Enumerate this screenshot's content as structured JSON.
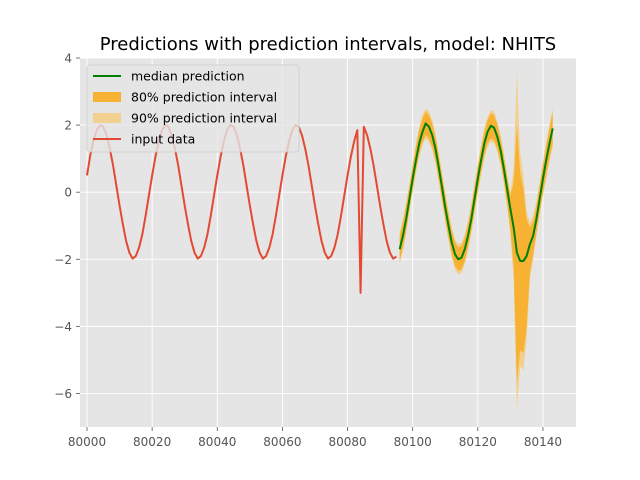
{
  "chart_data": {
    "type": "line",
    "title": "Predictions with prediction intervals, model: NHITS",
    "xlabel": "",
    "ylabel": "",
    "xlim": [
      79997.85,
      80150.15
    ],
    "ylim": [
      -7,
      4
    ],
    "x_ticks": [
      80000,
      80020,
      80040,
      80060,
      80080,
      80100,
      80120,
      80140
    ],
    "y_ticks": [
      4,
      2,
      0,
      -2,
      -4,
      -6
    ],
    "y_tick_labels": [
      "4",
      "2",
      "0",
      "−2",
      "−4",
      "−6"
    ],
    "grid": true,
    "legend_position": "upper-left",
    "legend": [
      {
        "label": "median prediction",
        "kind": "line",
        "color": "#008000"
      },
      {
        "label": "80% prediction interval",
        "kind": "patch",
        "color": "#F7B233"
      },
      {
        "label": "90% prediction interval",
        "kind": "patch",
        "color": "#F2D090"
      },
      {
        "label": "input data",
        "kind": "line",
        "color": "#E24A33"
      }
    ],
    "series": [
      {
        "name": "input data",
        "color": "#E24A33",
        "x": [
          80000,
          80001,
          80002,
          80003,
          80004,
          80005,
          80006,
          80007,
          80008,
          80009,
          80010,
          80011,
          80012,
          80013,
          80014,
          80015,
          80016,
          80017,
          80018,
          80019,
          80020,
          80021,
          80022,
          80023,
          80024,
          80025,
          80026,
          80027,
          80028,
          80029,
          80030,
          80031,
          80032,
          80033,
          80034,
          80035,
          80036,
          80037,
          80038,
          80039,
          80040,
          80041,
          80042,
          80043,
          80044,
          80045,
          80046,
          80047,
          80048,
          80049,
          80050,
          80051,
          80052,
          80053,
          80054,
          80055,
          80056,
          80057,
          80058,
          80059,
          80060,
          80061,
          80062,
          80063,
          80064,
          80065,
          80066,
          80067,
          80068,
          80069,
          80070,
          80071,
          80072,
          80073,
          80074,
          80075,
          80076,
          80077,
          80078,
          80079,
          80080,
          80081,
          80082,
          80083,
          80084,
          80085,
          80086,
          80087,
          80088,
          80089,
          80090,
          80091,
          80092,
          80093,
          80094,
          80095
        ],
        "y": [
          0.5,
          1.1,
          1.55,
          1.85,
          2.0,
          1.95,
          1.7,
          1.3,
          0.8,
          0.2,
          -0.4,
          -0.95,
          -1.45,
          -1.8,
          -1.98,
          -1.9,
          -1.65,
          -1.25,
          -0.7,
          -0.1,
          0.5,
          1.05,
          1.5,
          1.85,
          2.0,
          1.95,
          1.7,
          1.3,
          0.8,
          0.2,
          -0.4,
          -0.95,
          -1.45,
          -1.8,
          -1.98,
          -1.9,
          -1.65,
          -1.25,
          -0.7,
          -0.1,
          0.5,
          1.05,
          1.5,
          1.85,
          2.0,
          1.95,
          1.7,
          1.3,
          0.8,
          0.2,
          -0.4,
          -0.95,
          -1.45,
          -1.8,
          -1.98,
          -1.9,
          -1.65,
          -1.25,
          -0.7,
          -0.1,
          0.5,
          1.05,
          1.5,
          1.85,
          2.0,
          1.95,
          1.7,
          1.3,
          0.8,
          0.2,
          -0.4,
          -0.95,
          -1.45,
          -1.8,
          -1.98,
          -1.9,
          -1.65,
          -1.25,
          -0.7,
          -0.1,
          0.5,
          1.05,
          1.5,
          1.85,
          -3.0,
          1.95,
          1.7,
          1.3,
          0.8,
          0.2,
          -0.4,
          -0.95,
          -1.45,
          -1.8,
          -1.98,
          -1.92
        ]
      },
      {
        "name": "median prediction",
        "color": "#008000",
        "x": [
          80096,
          80097,
          80098,
          80099,
          80100,
          80101,
          80102,
          80103,
          80104,
          80105,
          80106,
          80107,
          80108,
          80109,
          80110,
          80111,
          80112,
          80113,
          80114,
          80115,
          80116,
          80117,
          80118,
          80119,
          80120,
          80121,
          80122,
          80123,
          80124,
          80125,
          80126,
          80127,
          80128,
          80129,
          80130,
          80131,
          80132,
          80133,
          80134,
          80135,
          80136,
          80137,
          80138,
          80139,
          80140,
          80141,
          80142,
          80143
        ],
        "y": [
          -1.7,
          -1.3,
          -0.8,
          -0.2,
          0.4,
          0.95,
          1.45,
          1.8,
          2.05,
          1.95,
          1.7,
          1.3,
          0.75,
          0.15,
          -0.45,
          -1.0,
          -1.5,
          -1.85,
          -2.0,
          -1.95,
          -1.7,
          -1.3,
          -0.8,
          -0.2,
          0.4,
          0.95,
          1.45,
          1.8,
          1.98,
          1.92,
          1.65,
          1.25,
          0.7,
          0.1,
          -0.5,
          -1.05,
          -1.8,
          -2.05,
          -2.05,
          -1.9,
          -1.55,
          -1.3,
          -0.8,
          -0.2,
          0.4,
          0.95,
          1.45,
          1.9
        ]
      }
    ],
    "intervals": [
      {
        "name": "90% prediction interval",
        "color": "#F2D090",
        "x": [
          80096,
          80097,
          80098,
          80099,
          80100,
          80101,
          80102,
          80103,
          80104,
          80105,
          80106,
          80107,
          80108,
          80109,
          80110,
          80111,
          80112,
          80113,
          80114,
          80115,
          80116,
          80117,
          80118,
          80119,
          80120,
          80121,
          80122,
          80123,
          80124,
          80125,
          80126,
          80127,
          80128,
          80129,
          80130,
          80131,
          80132,
          80133,
          80134,
          80135,
          80136,
          80137,
          80138,
          80139,
          80140,
          80141,
          80142,
          80143
        ],
        "lower": [
          -2.15,
          -1.75,
          -1.25,
          -0.6,
          0.0,
          0.55,
          1.05,
          1.4,
          1.6,
          1.5,
          1.25,
          0.85,
          0.3,
          -0.3,
          -0.9,
          -1.45,
          -1.95,
          -2.3,
          -2.45,
          -2.4,
          -2.15,
          -1.75,
          -1.25,
          -0.65,
          -0.05,
          0.5,
          1.0,
          1.35,
          1.5,
          1.45,
          1.2,
          0.8,
          0.25,
          -0.45,
          -1.3,
          -2.6,
          -6.5,
          -5.2,
          -5.3,
          -4.4,
          -2.6,
          -2.0,
          -1.3,
          -0.7,
          -0.1,
          0.4,
          0.9,
          1.35
        ],
        "upper": [
          -1.2,
          -0.8,
          -0.3,
          0.25,
          0.85,
          1.45,
          1.95,
          2.3,
          2.5,
          2.4,
          2.15,
          1.75,
          1.2,
          0.6,
          0.0,
          -0.55,
          -1.05,
          -1.4,
          -1.55,
          -1.5,
          -1.25,
          -0.85,
          -0.35,
          0.25,
          0.85,
          1.4,
          1.9,
          2.25,
          2.45,
          2.4,
          2.1,
          1.7,
          1.15,
          0.55,
          0.0,
          0.7,
          3.6,
          1.2,
          0.5,
          -0.6,
          -0.9,
          -0.7,
          -0.3,
          0.3,
          0.9,
          1.5,
          2.0,
          2.5
        ]
      },
      {
        "name": "80% prediction interval",
        "color": "#F7B233",
        "x": [
          80096,
          80097,
          80098,
          80099,
          80100,
          80101,
          80102,
          80103,
          80104,
          80105,
          80106,
          80107,
          80108,
          80109,
          80110,
          80111,
          80112,
          80113,
          80114,
          80115,
          80116,
          80117,
          80118,
          80119,
          80120,
          80121,
          80122,
          80123,
          80124,
          80125,
          80126,
          80127,
          80128,
          80129,
          80130,
          80131,
          80132,
          80133,
          80134,
          80135,
          80136,
          80137,
          80138,
          80139,
          80140,
          80141,
          80142,
          80143
        ],
        "lower": [
          -2.05,
          -1.65,
          -1.15,
          -0.5,
          0.1,
          0.65,
          1.15,
          1.5,
          1.7,
          1.6,
          1.35,
          0.95,
          0.4,
          -0.2,
          -0.8,
          -1.35,
          -1.85,
          -2.2,
          -2.35,
          -2.3,
          -2.05,
          -1.65,
          -1.15,
          -0.55,
          0.05,
          0.6,
          1.1,
          1.45,
          1.6,
          1.55,
          1.3,
          0.9,
          0.35,
          -0.35,
          -1.1,
          -2.2,
          -5.7,
          -4.7,
          -4.8,
          -4.0,
          -2.4,
          -1.85,
          -1.2,
          -0.6,
          0.0,
          0.5,
          1.0,
          1.45
        ],
        "upper": [
          -1.3,
          -0.9,
          -0.4,
          0.15,
          0.75,
          1.35,
          1.85,
          2.2,
          2.4,
          2.3,
          2.05,
          1.65,
          1.1,
          0.5,
          -0.1,
          -0.65,
          -1.15,
          -1.5,
          -1.65,
          -1.6,
          -1.35,
          -0.95,
          -0.45,
          0.15,
          0.75,
          1.3,
          1.8,
          2.15,
          2.35,
          2.3,
          2.0,
          1.6,
          1.05,
          0.45,
          -0.1,
          0.3,
          2.0,
          0.6,
          0.1,
          -0.8,
          -1.05,
          -0.85,
          -0.4,
          0.2,
          0.8,
          1.4,
          1.9,
          2.4
        ]
      }
    ]
  },
  "colors": {
    "axes_background": "#E5E5E5",
    "grid": "#FFFFFF",
    "tick_label": "#555555"
  }
}
